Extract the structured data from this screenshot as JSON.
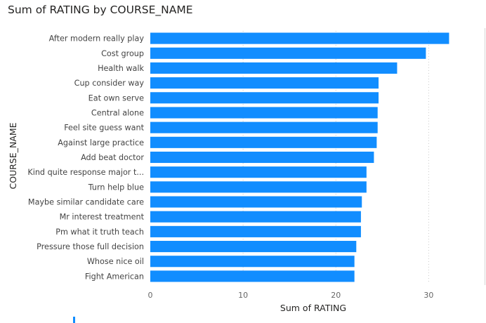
{
  "chart_data": {
    "type": "bar",
    "orientation": "horizontal",
    "title": "Sum of RATING by COURSE_NAME",
    "xlabel": "Sum of RATING",
    "ylabel": "COURSE_NAME",
    "xlim": [
      0,
      33
    ],
    "xticks": [
      0,
      10,
      20,
      30
    ],
    "grid": true,
    "bar_color": "#118DFF",
    "categories": [
      "After modern really play",
      "Cost group",
      "Health walk",
      "Cup consider way",
      "Eat own serve",
      "Central alone",
      "Feel site guess want",
      "Against large practice",
      "Add beat doctor",
      "Kind quite response major t...",
      "Turn help blue",
      "Maybe similar candidate care",
      "Mr interest treatment",
      "Pm what it truth teach",
      "Pressure those full decision",
      "Whose nice oil",
      "Fight American"
    ],
    "values": [
      32.2,
      29.7,
      26.6,
      24.6,
      24.6,
      24.5,
      24.5,
      24.4,
      24.1,
      23.3,
      23.3,
      22.8,
      22.7,
      22.7,
      22.2,
      22.0,
      22.0
    ]
  }
}
